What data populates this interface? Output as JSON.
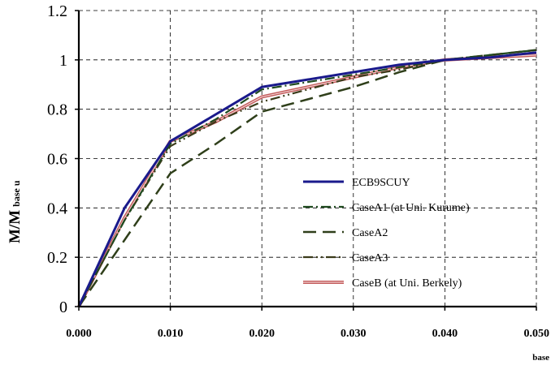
{
  "chart_data": {
    "type": "line",
    "title": "",
    "ylabel": {
      "main": "M/M",
      "sub": "base u"
    },
    "xlabel": "base",
    "xlim": [
      0.0,
      0.05
    ],
    "ylim": [
      0,
      1.2
    ],
    "grid": true,
    "legend_position": "lower-right",
    "x_ticks": [
      0.0,
      0.01,
      0.02,
      0.03,
      0.04,
      0.05
    ],
    "x_tick_labels": [
      "0.000",
      "0.010",
      "0.020",
      "0.030",
      "0.040",
      "0.050"
    ],
    "y_ticks": [
      0,
      0.2,
      0.4,
      0.6,
      0.8,
      1.0,
      1.2
    ],
    "y_tick_labels": [
      "0",
      "0.2",
      "0.4",
      "0.6",
      "0.8",
      "1",
      "1.2"
    ],
    "series": [
      {
        "name": "ECB9SCUY",
        "color": "#1a1a8c",
        "style": "solid",
        "x": [
          0.0,
          0.005,
          0.01,
          0.015,
          0.02,
          0.025,
          0.03,
          0.035,
          0.04,
          0.045,
          0.05
        ],
        "y": [
          0.0,
          0.4,
          0.67,
          0.78,
          0.89,
          0.92,
          0.95,
          0.98,
          1.0,
          1.01,
          1.03
        ]
      },
      {
        "name": "CaseA1 (at Uni. Kurume)",
        "color": "#1f4a1f",
        "style": "dashdot",
        "x": [
          0.0,
          0.005,
          0.01,
          0.015,
          0.02,
          0.025,
          0.03,
          0.035,
          0.04,
          0.045,
          0.05
        ],
        "y": [
          0.0,
          0.35,
          0.66,
          0.76,
          0.88,
          0.91,
          0.94,
          0.97,
          1.0,
          1.02,
          1.04
        ]
      },
      {
        "name": "CaseA2",
        "color": "#2f3f1a",
        "style": "longdash",
        "x": [
          0.0,
          0.005,
          0.01,
          0.015,
          0.02,
          0.025,
          0.03,
          0.035,
          0.04,
          0.045,
          0.05
        ],
        "y": [
          0.0,
          0.27,
          0.54,
          0.66,
          0.79,
          0.84,
          0.89,
          0.95,
          1.0,
          1.02,
          1.04
        ]
      },
      {
        "name": "CaseA3",
        "color": "#3b3b1a",
        "style": "dashdotdot",
        "x": [
          0.0,
          0.005,
          0.01,
          0.015,
          0.02,
          0.025,
          0.03,
          0.035,
          0.04,
          0.045,
          0.05
        ],
        "y": [
          0.0,
          0.35,
          0.65,
          0.75,
          0.83,
          0.88,
          0.93,
          0.96,
          1.0,
          1.02,
          1.04
        ]
      },
      {
        "name": "CaseB (at Uni. Berkely)",
        "color": "#c25a5a",
        "style": "double",
        "x": [
          0.0,
          0.005,
          0.01,
          0.015,
          0.02,
          0.025,
          0.03,
          0.035,
          0.04,
          0.045,
          0.05
        ],
        "y": [
          0.0,
          0.36,
          0.67,
          0.75,
          0.85,
          0.89,
          0.93,
          0.97,
          1.0,
          1.01,
          1.02
        ]
      }
    ]
  }
}
